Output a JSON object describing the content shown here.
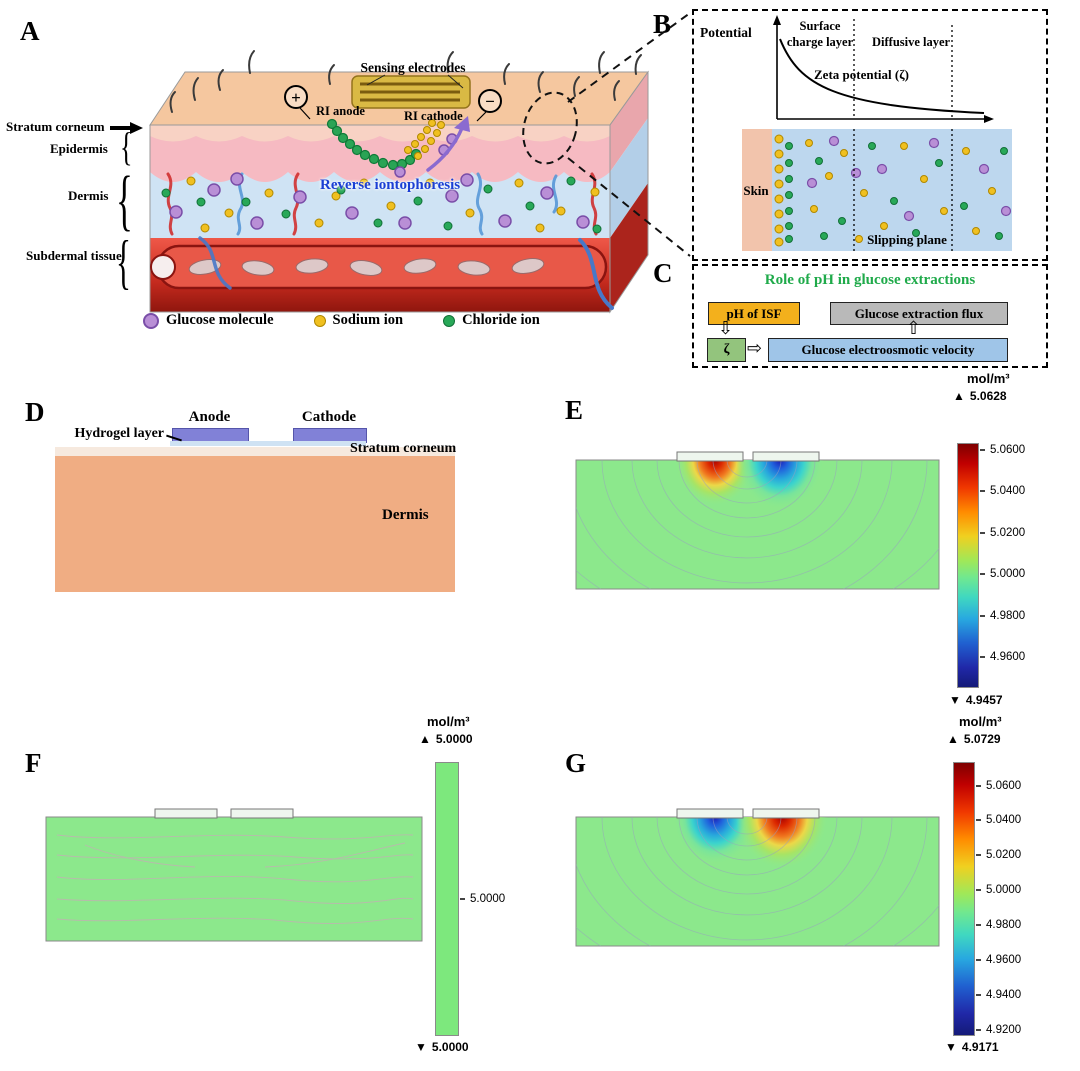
{
  "figure": {
    "panel_a": {
      "label": "A",
      "sensing_electrodes": "Sensing electrodes",
      "ri_anode": "RI anode",
      "ri_cathode": "RI cathode",
      "anode_sign": "+",
      "cathode_sign": "−",
      "stratum_corneum": "Stratum corneum",
      "epidermis": "Epidermis",
      "dermis": "Dermis",
      "subdermal_tissue": "Subdermal tissue",
      "process": "Reverse iontophoresis",
      "brace": "{",
      "legend": {
        "glucose": "Glucose molecule",
        "sodium": "Sodium ion",
        "chloride": "Chloride ion"
      }
    },
    "panel_b": {
      "label": "B",
      "potential": "Potential",
      "surface_charge_layer": "Surface charge layer",
      "diffusive_layer": "Diffusive layer",
      "zeta_potential": "Zeta potential (ζ)",
      "skin": "Skin",
      "slipping_plane": "Slipping plane"
    },
    "panel_c": {
      "label": "C",
      "title": "Role of pH in glucose extractions",
      "ph_box": "pH of ISF",
      "flux_box": "Glucose extraction flux",
      "zeta_box": "ζ",
      "velocity_box": "Glucose electroosmotic velocity",
      "arrow_down": "⇩",
      "arrow_right": "⇨",
      "arrow_up": "⇧"
    },
    "panel_d": {
      "label": "D",
      "anode": "Anode",
      "cathode": "Cathode",
      "hydrogel": "Hydrogel layer",
      "stratum_corneum": "Stratum corneum",
      "dermis": "Dermis"
    },
    "panel_e": {
      "label": "E",
      "colorbar": {
        "unit": "mol/m³",
        "max_marker": "▲",
        "min_marker": "▼",
        "max": "5.0628",
        "min": "4.9457",
        "ticks": [
          "5.0600",
          "5.0400",
          "5.0200",
          "5.0000",
          "4.9800",
          "4.9600"
        ]
      }
    },
    "panel_f": {
      "label": "F",
      "colorbar": {
        "unit": "mol/m³",
        "max_marker": "▲",
        "min_marker": "▼",
        "max": "5.0000",
        "min": "5.0000",
        "ticks": [
          "5.0000"
        ]
      }
    },
    "panel_g": {
      "label": "G",
      "colorbar": {
        "unit": "mol/m³",
        "max_marker": "▲",
        "min_marker": "▼",
        "max": "5.0729",
        "min": "4.9171",
        "ticks": [
          "5.0600",
          "5.0400",
          "5.0200",
          "5.0000",
          "4.9800",
          "4.9600",
          "4.9400",
          "4.9200"
        ]
      }
    },
    "colors": {
      "glucose": "#b98fd6",
      "sodium": "#f0c020",
      "chloride": "#28a858",
      "title_green": "#1faa4a",
      "process_blue": "#1a3fd4"
    }
  }
}
